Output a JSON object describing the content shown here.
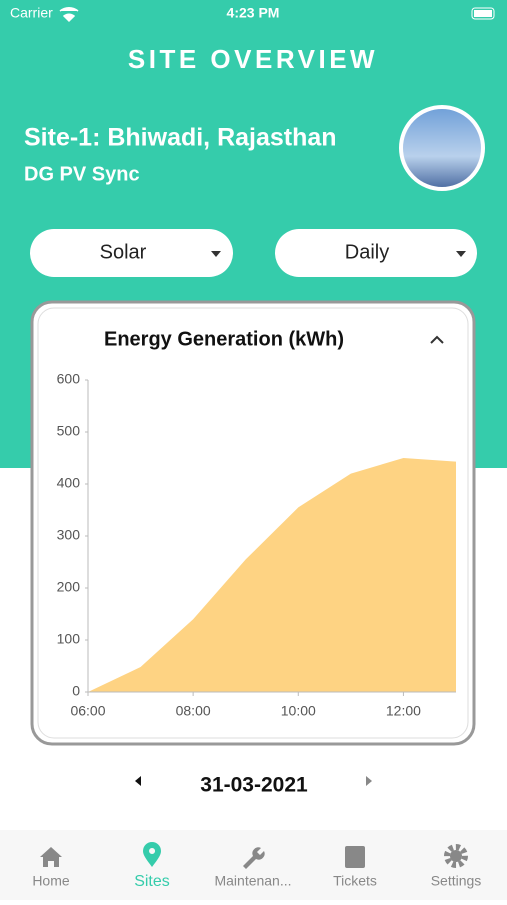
{
  "status_bar": {
    "carrier": "Carrier",
    "time": "4:23 PM"
  },
  "header": {
    "title": "SITE OVERVIEW",
    "site_name": "Site-1: Bhiwadi, Rajasthan",
    "subtitle": "DG PV Sync"
  },
  "selectors": [
    "Solar",
    "Daily"
  ],
  "chart_data": {
    "type": "area",
    "title": "Energy Generation (kWh)",
    "color": "#fed383",
    "x": [
      6,
      7,
      8,
      9,
      10,
      11,
      12,
      13
    ],
    "values": [
      0,
      48,
      140,
      255,
      355,
      420,
      450,
      443
    ],
    "xlim": [
      6,
      13
    ],
    "xticks": [
      {
        "value": 6,
        "label": "06:00"
      },
      {
        "value": 8,
        "label": "08:00"
      },
      {
        "value": 10,
        "label": "10:00"
      },
      {
        "value": 12,
        "label": "12:00"
      }
    ],
    "ylim": [
      0,
      600
    ],
    "yticks": [
      0,
      100,
      200,
      300,
      400,
      500,
      600
    ]
  },
  "date_nav": {
    "date": "31-03-2021"
  },
  "tab_bar": [
    "Home",
    "Sites",
    "Maintenan...",
    "Tickets",
    "Settings"
  ]
}
